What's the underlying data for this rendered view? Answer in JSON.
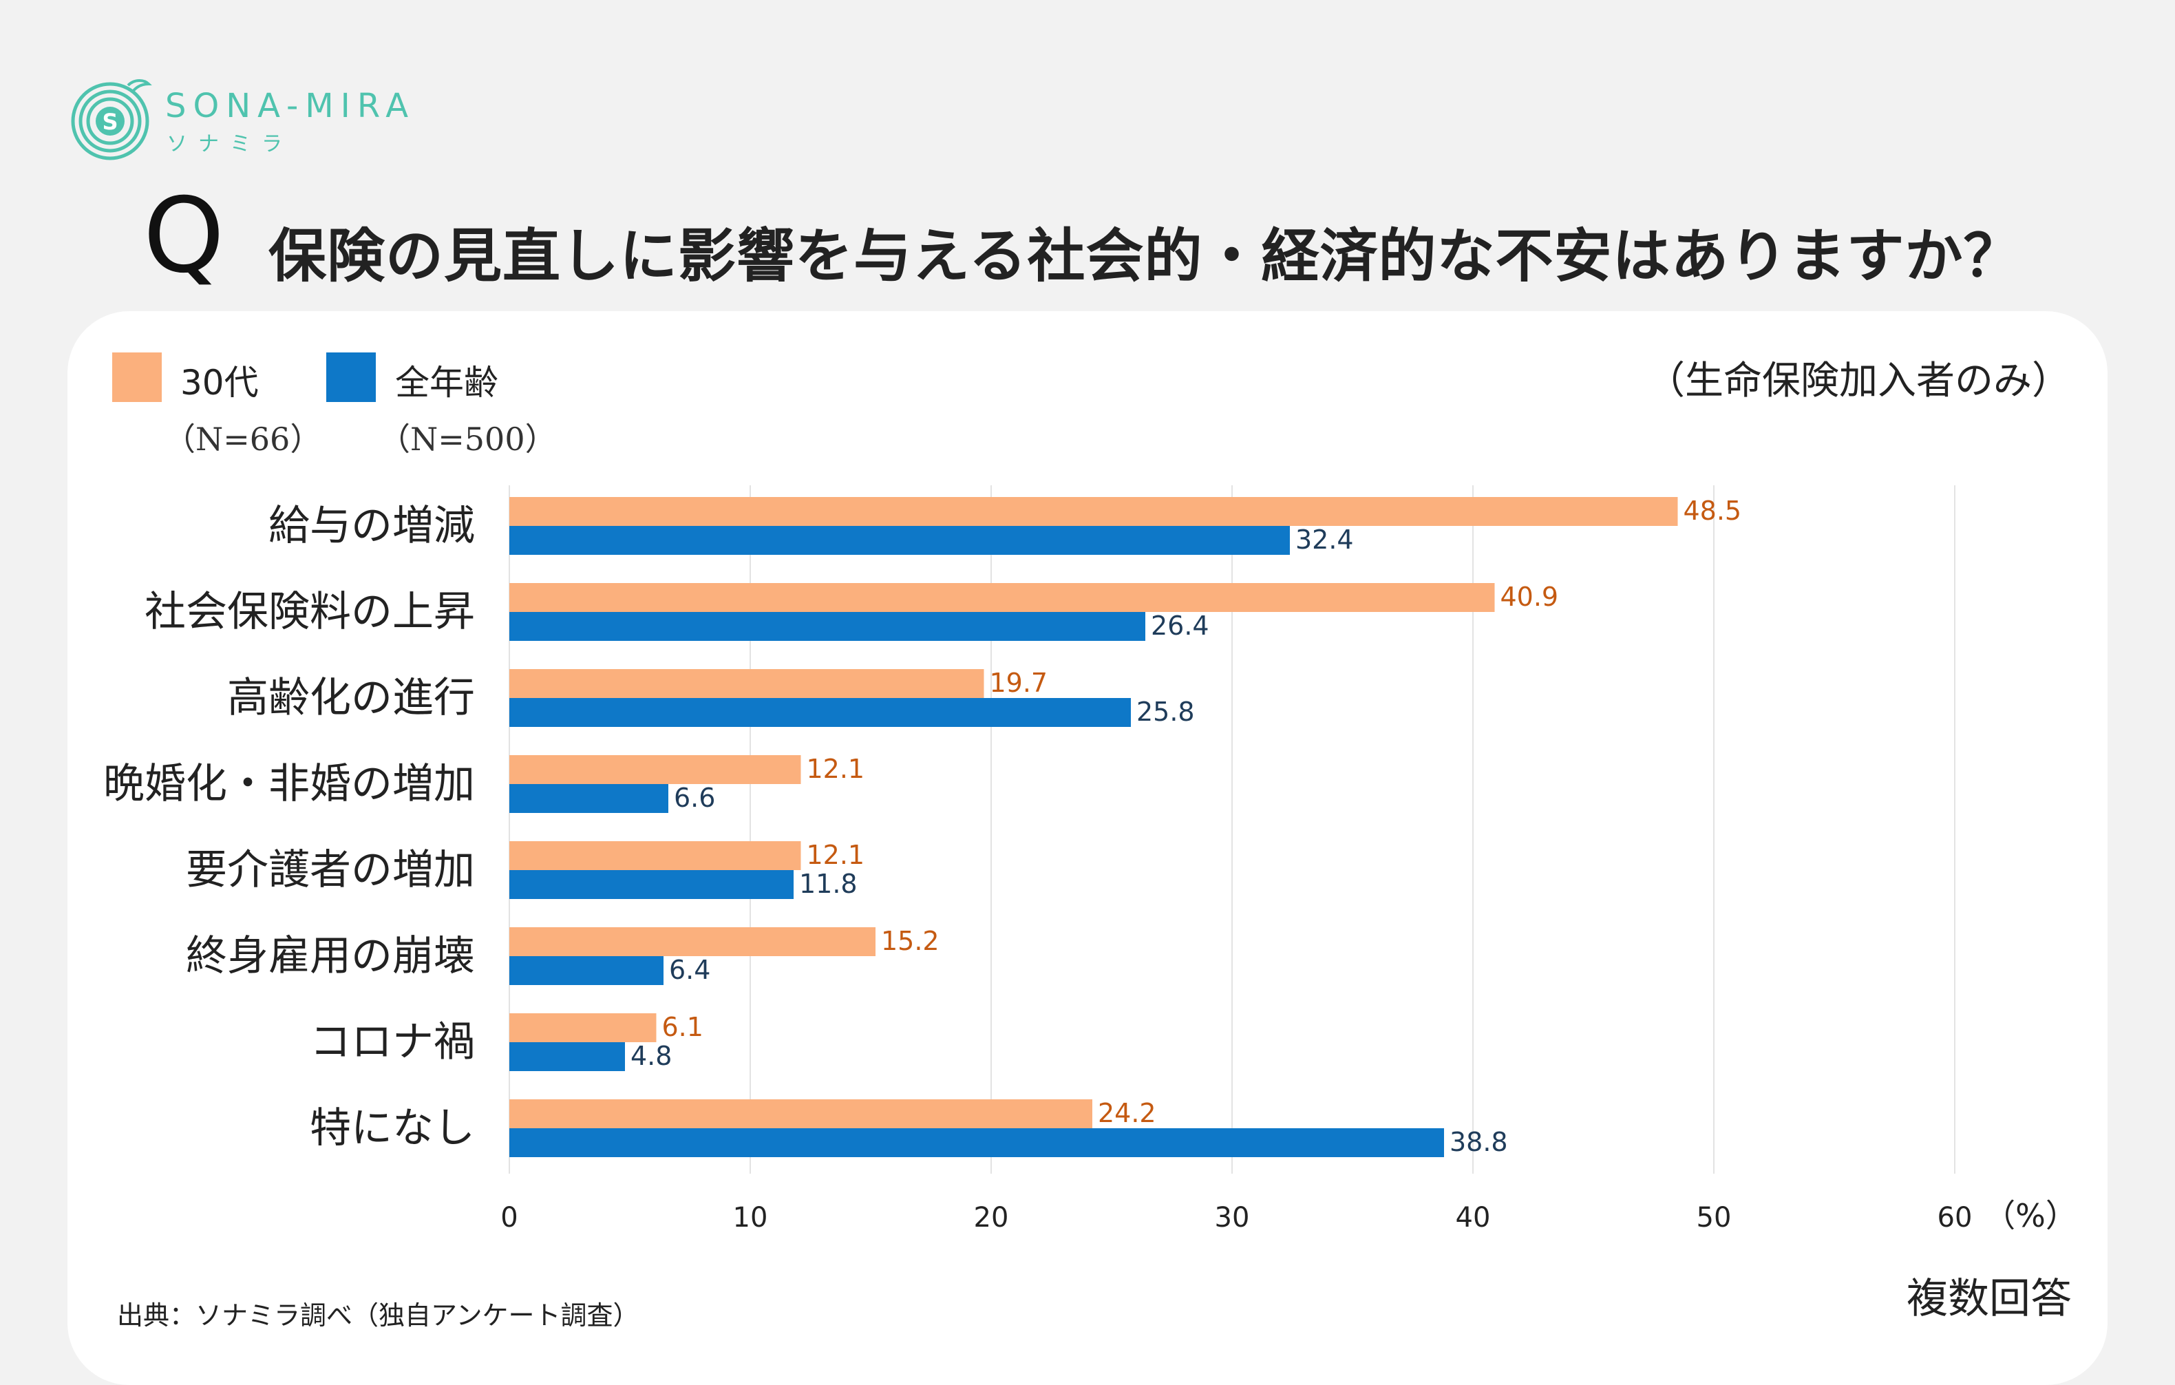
{
  "brand": {
    "name": "SONA-MIRA",
    "name_kana": "ソナミラ",
    "color": "#4fc3ae"
  },
  "question": {
    "marker": "Q",
    "text": "保険の見直しに影響を与える社会的・経済的な不安はありますか？"
  },
  "scope_note": "（生命保険加入者のみ）",
  "legend": [
    {
      "label": "30代",
      "n": "（N=66）",
      "color": "#fbb07d"
    },
    {
      "label": "全年齢",
      "n": "（N=500）",
      "color": "#0e78c8"
    }
  ],
  "footer": {
    "source": "出典：ソナミラ調べ（独自アンケート調査）",
    "answer_type": "複数回答"
  },
  "chart_data": {
    "type": "bar",
    "orientation": "horizontal",
    "categories": [
      "給与の増減",
      "社会保険料の上昇",
      "高齢化の進行",
      "晩婚化・非婚の増加",
      "要介護者の増加",
      "終身雇用の崩壊",
      "コロナ禍",
      "特になし"
    ],
    "series": [
      {
        "name": "30代",
        "color": "#fbb07d",
        "label_color": "#c55a11",
        "values": [
          48.5,
          40.9,
          19.7,
          12.1,
          12.1,
          15.2,
          6.1,
          24.2
        ]
      },
      {
        "name": "全年齢",
        "color": "#0e78c8",
        "label_color": "#1f3c5a",
        "values": [
          32.4,
          26.4,
          25.8,
          6.6,
          11.8,
          6.4,
          4.8,
          38.8
        ]
      }
    ],
    "xlim": [
      0,
      60
    ],
    "xticks": [
      0,
      10,
      20,
      30,
      40,
      50,
      60
    ],
    "x_unit": "（%）",
    "grid": true,
    "legend_position": "top-left"
  }
}
